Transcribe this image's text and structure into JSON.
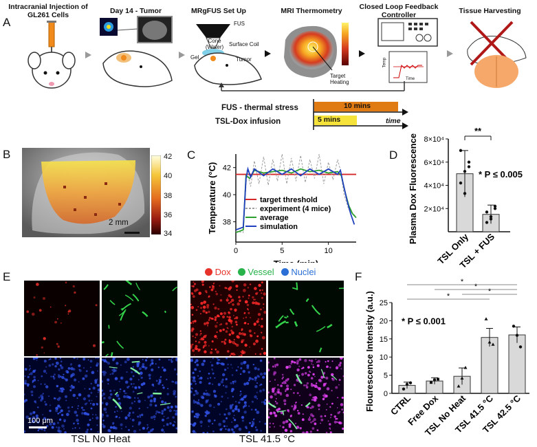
{
  "panel_labels": {
    "a": "A",
    "b": "B",
    "c": "C",
    "d": "D",
    "e": "E",
    "f": "F"
  },
  "workflow": {
    "steps": [
      {
        "title": "Intracranial Injection of GL261 Cells"
      },
      {
        "title": "Day 14 - Tumor"
      },
      {
        "title": "MRgFUS Set Up"
      },
      {
        "title": "MRI Thermometry"
      },
      {
        "title": "Closed Loop Feedback Controller"
      },
      {
        "title": "Tissue Harvesting"
      }
    ],
    "setup_labels": {
      "fus": "FUS",
      "cone": "Cone",
      "water": "(Water)",
      "coil": "Surface Coil",
      "gel": "Gel",
      "tumor": "Tumor"
    },
    "thermo_label": "Target Heating",
    "controller_axes": {
      "ylabel": "Temp",
      "xlabel": "Time"
    },
    "timeline": {
      "fus_label": "FUS - thermal stress",
      "fus_bar": "10 mins",
      "tsl_label": "TSL-Dox infusion",
      "tsl_bar": "5 mins",
      "time_label": "time"
    }
  },
  "panel_b": {
    "scale_bar": "2 mm",
    "colorbar_ticks": [
      "42",
      "40",
      "38",
      "36",
      "34"
    ]
  },
  "chart_data": [
    {
      "type": "line",
      "panel": "C",
      "xlabel": "Time (min)",
      "ylabel": "Temperature (°C)",
      "xlim": [
        0,
        13
      ],
      "ylim": [
        36.5,
        43
      ],
      "xticks": [
        "0",
        "5",
        "10"
      ],
      "yticks": [
        "38",
        "40",
        "42"
      ],
      "threshold": 41.5,
      "series": [
        {
          "name": "target threshold",
          "color": "#d62728",
          "x": [
            0,
            13
          ],
          "y": [
            41.5,
            41.5
          ]
        },
        {
          "name": "experiment (4 mice)",
          "color": "#9e9e9e",
          "x": [
            0,
            0.8,
            1.2,
            1.6,
            2,
            2.5,
            3,
            3.5,
            4,
            4.5,
            5,
            5.5,
            6,
            6.5,
            7,
            7.5,
            8,
            8.5,
            9,
            9.5,
            10,
            10.5,
            11,
            11.3,
            11.7,
            12.2,
            12.6,
            13
          ],
          "y": [
            37.3,
            37.2,
            41.8,
            40.6,
            42.5,
            40.8,
            42.8,
            40.7,
            42.6,
            41.0,
            43.0,
            40.8,
            42.7,
            41.0,
            42.9,
            40.9,
            42.6,
            41.2,
            43.0,
            40.8,
            42.4,
            41.1,
            42.6,
            41.8,
            40.0,
            38.9,
            38.6,
            38.4
          ]
        },
        {
          "name": "average",
          "color": "#2ca02c",
          "x": [
            0,
            0.8,
            1.1,
            1.5,
            2,
            3,
            4,
            5,
            6,
            7,
            8,
            9,
            10,
            11,
            11.4,
            11.8,
            12.2,
            12.6,
            13
          ],
          "y": [
            37.2,
            37.4,
            41.4,
            41.2,
            41.8,
            41.6,
            41.7,
            41.8,
            41.6,
            41.9,
            41.7,
            41.8,
            41.6,
            41.7,
            41.4,
            40.2,
            39.2,
            38.6,
            38.3
          ]
        },
        {
          "name": "simulation",
          "color": "#1f3fbf",
          "x": [
            0,
            0.8,
            1.1,
            1.3,
            1.6,
            2,
            3,
            4,
            5,
            6,
            7,
            8,
            9,
            10,
            11,
            11.3,
            11.6,
            12,
            12.4,
            12.8
          ],
          "y": [
            37.4,
            37.6,
            41.2,
            41.9,
            41.3,
            41.9,
            41.4,
            41.9,
            41.5,
            41.9,
            41.4,
            41.9,
            41.5,
            41.9,
            41.5,
            41.8,
            40.8,
            39.6,
            38.6,
            37.8
          ]
        }
      ]
    },
    {
      "type": "bar",
      "panel": "D",
      "categories": [
        "TSL Only",
        "TSL + FUS"
      ],
      "values": [
        50000,
        15000
      ],
      "errors": [
        20000,
        8000
      ],
      "ylabel": "Plasma Dox Fluorescence",
      "ylim": [
        0,
        80000
      ],
      "yticks": [
        "2×10⁴",
        "4×10⁴",
        "6×10⁴",
        "8×10⁴"
      ],
      "significance": "**",
      "annotation": "* P ≤ 0.005",
      "points": [
        [
          42000,
          52000,
          60000,
          70000,
          33000,
          56000
        ],
        [
          8000,
          13000,
          20000,
          17000,
          11000,
          22000
        ]
      ]
    },
    {
      "type": "bar",
      "panel": "F",
      "categories": [
        "CTRL",
        "Free Dox",
        "TSL No Heat",
        "TSL 41.5 °C",
        "TSL 42.5 °C"
      ],
      "values": [
        2.2,
        3.4,
        4.7,
        15.4,
        16.1
      ],
      "errors": [
        0.9,
        0.9,
        2.3,
        2.5,
        2.2
      ],
      "ylabel": "Flourescence Intensity (a.u.)",
      "ylim": [
        0,
        25
      ],
      "yticks": [
        "0",
        "5",
        "10",
        "15",
        "20",
        "25"
      ],
      "annotation": "* P ≤ 0.001",
      "significance": "*",
      "points": [
        [
          1.2,
          2.5,
          2.9
        ],
        [
          3.0,
          3.7,
          3.9
        ],
        [
          2.0,
          4.2,
          7.1
        ],
        [
          20.5,
          14.1,
          13.5
        ],
        [
          18.5,
          16.0,
          12.8
        ]
      ]
    }
  ],
  "panel_e": {
    "legend": [
      {
        "label": "Dox",
        "color": "#e8332b"
      },
      {
        "label": "Vessel",
        "color": "#27b24a"
      },
      {
        "label": "Nuclei",
        "color": "#2b6fd6"
      }
    ],
    "scale_bar": "100 μm",
    "captions": [
      "TSL No Heat",
      "TSL 41.5 °C"
    ]
  }
}
